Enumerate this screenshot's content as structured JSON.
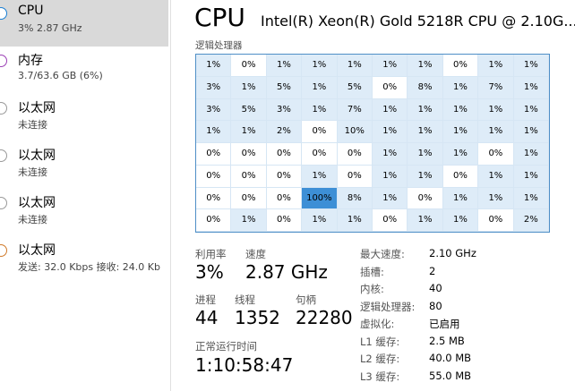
{
  "sidebar": [
    {
      "name": "CPU",
      "sub": "3% 2.87 GHz"
    },
    {
      "name": "内存",
      "sub": "3.7/63.6 GB (6%)"
    },
    {
      "name": "以太网",
      "sub": "未连接"
    },
    {
      "name": "以太网",
      "sub": "未连接"
    },
    {
      "name": "以太网",
      "sub": "未连接"
    },
    {
      "name": "以太网",
      "sub": "发送: 32.0 Kbps 接收: 24.0 Kb"
    }
  ],
  "header": {
    "title": "CPU",
    "model": "Intel(R) Xeon(R) Gold 5218R CPU @ 2.10G...",
    "grid_label": "逻辑处理器"
  },
  "grid": [
    [
      "1%",
      "0%",
      "1%",
      "1%",
      "1%",
      "1%",
      "1%",
      "0%",
      "1%",
      "1%"
    ],
    [
      "3%",
      "1%",
      "5%",
      "1%",
      "5%",
      "0%",
      "8%",
      "1%",
      "7%",
      "1%"
    ],
    [
      "3%",
      "5%",
      "3%",
      "1%",
      "7%",
      "1%",
      "1%",
      "1%",
      "1%",
      "1%"
    ],
    [
      "1%",
      "1%",
      "2%",
      "0%",
      "10%",
      "1%",
      "1%",
      "1%",
      "1%",
      "1%"
    ],
    [
      "0%",
      "0%",
      "0%",
      "0%",
      "0%",
      "1%",
      "1%",
      "1%",
      "0%",
      "1%"
    ],
    [
      "0%",
      "0%",
      "0%",
      "1%",
      "0%",
      "1%",
      "1%",
      "0%",
      "1%",
      "1%"
    ],
    [
      "0%",
      "0%",
      "0%",
      "100%",
      "8%",
      "1%",
      "0%",
      "1%",
      "1%",
      "1%"
    ],
    [
      "0%",
      "1%",
      "0%",
      "1%",
      "1%",
      "0%",
      "1%",
      "1%",
      "0%",
      "2%"
    ]
  ],
  "stats": [
    {
      "label": "利用率",
      "value": "3%"
    },
    {
      "label": "速度",
      "value": "2.87 GHz"
    },
    {
      "label": "进程",
      "value": "44"
    },
    {
      "label": "线程",
      "value": "1352"
    },
    {
      "label": "句柄",
      "value": "22280"
    },
    {
      "label": "正常运行时间",
      "value": "1:10:58:47"
    }
  ],
  "details": [
    {
      "label": "最大速度:",
      "value": "2.10 GHz"
    },
    {
      "label": "插槽:",
      "value": "2"
    },
    {
      "label": "内核:",
      "value": "40"
    },
    {
      "label": "逻辑处理器:",
      "value": "80"
    },
    {
      "label": "虚拟化:",
      "value": "已启用"
    },
    {
      "label": "L1 缓存:",
      "value": "2.5 MB"
    },
    {
      "label": "L2 缓存:",
      "value": "40.0 MB"
    },
    {
      "label": "L3 缓存:",
      "value": "55.0 MB"
    }
  ]
}
